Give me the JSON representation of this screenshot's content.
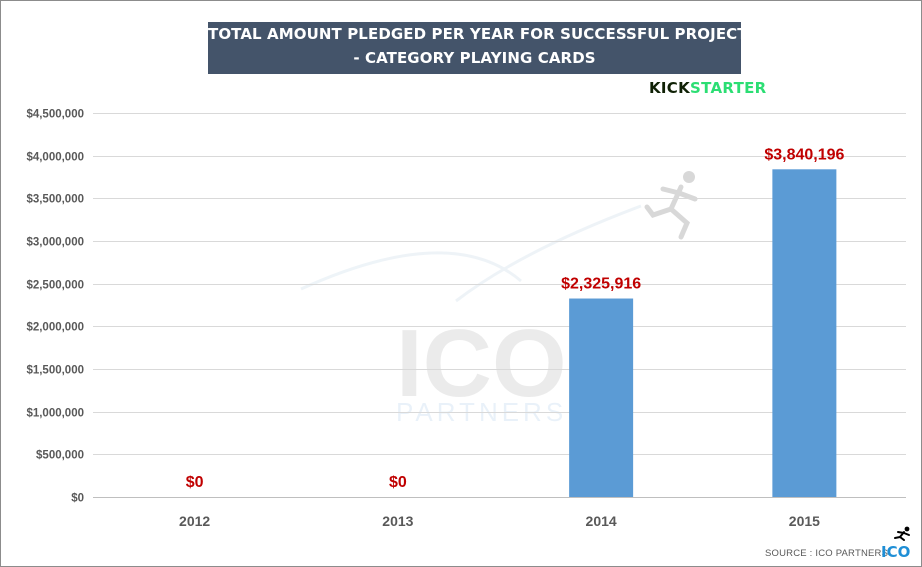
{
  "title": {
    "line1": "TOTAL AMOUNT PLEDGED PER YEAR FOR SUCCESSFUL PROJECTS",
    "line2": "- CATEGORY PLAYING CARDS"
  },
  "logo": {
    "kick": "KICK",
    "starter": "STARTER"
  },
  "watermark": {
    "main": "ICO",
    "sub": "PARTNERS"
  },
  "source": "SOURCE : ICO PARTNERS",
  "source_logo": "ICO",
  "colors": {
    "bar": "#5b9bd5",
    "label": "#c00000",
    "title_bg": "#44546a",
    "grid": "#d9d9d9",
    "tick": "#595959"
  },
  "chart_data": {
    "type": "bar",
    "title": "TOTAL AMOUNT PLEDGED PER YEAR FOR SUCCESSFUL PROJECTS - CATEGORY PLAYING CARDS",
    "xlabel": "",
    "ylabel": "",
    "categories": [
      "2012",
      "2013",
      "2014",
      "2015"
    ],
    "values": [
      0,
      0,
      2325916,
      3840196
    ],
    "data_labels": [
      "$0",
      "$0",
      "$2,325,916",
      "$3,840,196"
    ],
    "ylim": [
      0,
      4500000
    ],
    "yticks": [
      0,
      500000,
      1000000,
      1500000,
      2000000,
      2500000,
      3000000,
      3500000,
      4000000,
      4500000
    ],
    "ytick_labels": [
      "$0",
      "$500,000",
      "$1,000,000",
      "$1,500,000",
      "$2,000,000",
      "$2,500,000",
      "$3,000,000",
      "$3,500,000",
      "$4,000,000",
      "$4,500,000"
    ],
    "grid": true,
    "legend": "none"
  }
}
